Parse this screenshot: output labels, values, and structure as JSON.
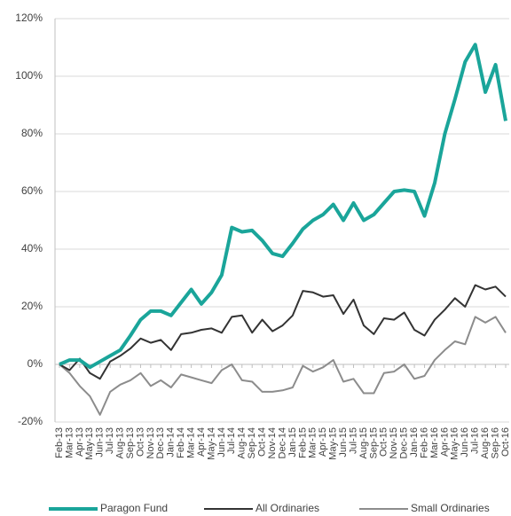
{
  "chart_data": {
    "type": "line",
    "categories": [
      "Feb-13",
      "Mar-13",
      "Apr-13",
      "May-13",
      "Jun-13",
      "Jul-13",
      "Aug-13",
      "Sep-13",
      "Oct-13",
      "Nov-13",
      "Dec-13",
      "Jan-14",
      "Feb-14",
      "Mar-14",
      "Apr-14",
      "May-14",
      "Jun-14",
      "Jul-14",
      "Aug-14",
      "Sep-14",
      "Oct-14",
      "Nov-14",
      "Dec-14",
      "Jan-15",
      "Feb-15",
      "Mar-15",
      "Apr-15",
      "May-15",
      "Jun-15",
      "Jul-15",
      "Aug-15",
      "Sep-15",
      "Oct-15",
      "Nov-15",
      "Dec-15",
      "Jan-16",
      "Feb-16",
      "Mar-16",
      "Apr-16",
      "May-16",
      "Jun-16",
      "Jul-16",
      "Aug-16",
      "Sep-16",
      "Oct-16"
    ],
    "series": [
      {
        "name": "Paragon Fund",
        "color": "#1aa59a",
        "values": [
          0,
          1.5,
          1.5,
          -1,
          1,
          3,
          5,
          10,
          15.5,
          18.5,
          18.5,
          17,
          21.5,
          26,
          21,
          25,
          31,
          47.5,
          46,
          46.5,
          43,
          38.5,
          37.5,
          42,
          47,
          50,
          52,
          55.5,
          50,
          56,
          50,
          52,
          56,
          60,
          60.5,
          60,
          51.5,
          63,
          80,
          92,
          105,
          111,
          94.5,
          104,
          84.5
        ]
      },
      {
        "name": "All Ordinaries",
        "color": "#333333",
        "values": [
          0,
          -2,
          2,
          -3,
          -5,
          1,
          3,
          5.5,
          9,
          7.5,
          8.5,
          5,
          10.5,
          11,
          12,
          12.5,
          11,
          16.5,
          17,
          11,
          15.5,
          11.5,
          13.5,
          17,
          25.5,
          25,
          23.5,
          24,
          17.5,
          22.5,
          13.5,
          10.5,
          16,
          15.5,
          18,
          12,
          10,
          15.5,
          19,
          23,
          20,
          27.5,
          26,
          27,
          23.5
        ]
      },
      {
        "name": "Small Ordinaries",
        "color": "#8c8c8c",
        "values": [
          0,
          -3,
          -7.5,
          -11,
          -17.5,
          -9.5,
          -7,
          -5.5,
          -3,
          -7.5,
          -5.5,
          -8,
          -3.5,
          -4.5,
          -5.5,
          -6.5,
          -2,
          0,
          -5.5,
          -6,
          -9.5,
          -9.5,
          -9,
          -8,
          -0.5,
          -2.5,
          -1,
          1.5,
          -6,
          -5,
          -10,
          -10,
          -3,
          -2.5,
          0,
          -5,
          -4,
          1.5,
          5,
          8,
          7,
          16.5,
          14.5,
          16.5,
          11
        ]
      }
    ],
    "ylim": [
      -20,
      120
    ],
    "yticks": [
      {
        "value": -20,
        "label": "-20%"
      },
      {
        "value": 0,
        "label": "0%"
      },
      {
        "value": 20,
        "label": "20%"
      },
      {
        "value": 40,
        "label": "40%"
      },
      {
        "value": 60,
        "label": "60%"
      },
      {
        "value": 80,
        "label": "80%"
      },
      {
        "value": 100,
        "label": "100%"
      },
      {
        "value": 120,
        "label": "120%"
      }
    ],
    "grid": true
  }
}
